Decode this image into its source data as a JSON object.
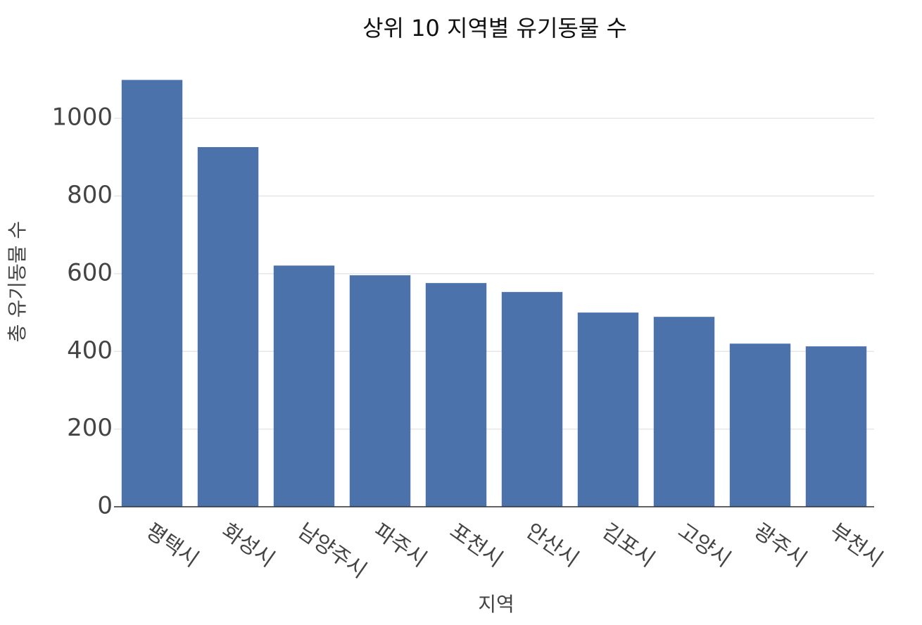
{
  "chart_data": {
    "type": "bar",
    "title": "상위 10 지역별 유기동물 수",
    "x_label": "지역",
    "y_label": "총 유기동물 수",
    "categories": [
      "평택시",
      "화성시",
      "남양주시",
      "파주시",
      "포천시",
      "안산시",
      "김포시",
      "고양시",
      "광주시",
      "부천시"
    ],
    "values": [
      1099,
      926,
      621,
      596,
      576,
      553,
      500,
      489,
      420,
      413
    ],
    "color": "#4c72ab",
    "ylim": [
      0,
      1100
    ],
    "yticks": [
      0,
      200,
      400,
      600,
      800,
      1000
    ],
    "grid": true
  }
}
